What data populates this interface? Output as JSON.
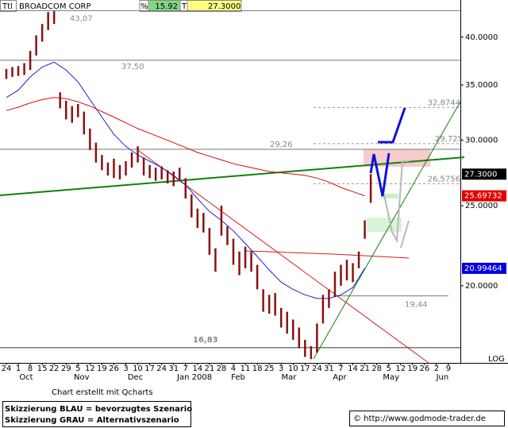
{
  "chart_data": {
    "type": "hilo",
    "symbol": "Ttl",
    "title": "BROADCOM CORP",
    "change_label": "%",
    "change": "15.92",
    "last_label": "T",
    "last": "27.3000",
    "scale_label": "LOG",
    "log_scale": true,
    "xlim": [
      -0.53,
      38.0
    ],
    "ylim": [
      16.2,
      43.2
    ],
    "yticks": [
      {
        "value": 20,
        "label": "20.0000"
      },
      {
        "value": 25,
        "label": "25.0000"
      },
      {
        "value": 30,
        "label": "30.0000"
      },
      {
        "value": 35,
        "label": "35.0000"
      },
      {
        "value": 40,
        "label": "40.0000"
      }
    ],
    "xticks": [
      {
        "value": 0,
        "label": "24"
      },
      {
        "value": 1,
        "label": "1"
      },
      {
        "value": 2,
        "label": "8"
      },
      {
        "value": 3,
        "label": "15"
      },
      {
        "value": 4,
        "label": "22"
      },
      {
        "value": 5,
        "label": "29"
      },
      {
        "value": 6,
        "label": "5"
      },
      {
        "value": 7,
        "label": "12"
      },
      {
        "value": 8,
        "label": "19"
      },
      {
        "value": 9,
        "label": "26"
      },
      {
        "value": 10,
        "label": "3"
      },
      {
        "value": 11,
        "label": "10"
      },
      {
        "value": 12,
        "label": "17"
      },
      {
        "value": 13,
        "label": "24"
      },
      {
        "value": 14,
        "label": "31"
      },
      {
        "value": 15,
        "label": "7"
      },
      {
        "value": 16,
        "label": "14"
      },
      {
        "value": 17,
        "label": "21"
      },
      {
        "value": 18,
        "label": "28"
      },
      {
        "value": 19,
        "label": "4"
      },
      {
        "value": 20,
        "label": "11"
      },
      {
        "value": 21,
        "label": "18"
      },
      {
        "value": 22,
        "label": "25"
      },
      {
        "value": 23,
        "label": "3"
      },
      {
        "value": 24,
        "label": "10"
      },
      {
        "value": 25,
        "label": "17"
      },
      {
        "value": 26,
        "label": "24"
      },
      {
        "value": 27,
        "label": "31"
      },
      {
        "value": 28,
        "label": "7"
      },
      {
        "value": 29,
        "label": "14"
      },
      {
        "value": 30,
        "label": "21"
      },
      {
        "value": 31,
        "label": "28"
      },
      {
        "value": 32,
        "label": "5"
      },
      {
        "value": 33,
        "label": "12"
      },
      {
        "value": 34,
        "label": "19"
      },
      {
        "value": 35,
        "label": "26"
      },
      {
        "value": 36,
        "label": "2"
      },
      {
        "value": 37,
        "label": "9"
      }
    ],
    "month_labels": [
      {
        "value": 1.66,
        "label": "Oct"
      },
      {
        "value": 6.3,
        "label": "Nov"
      },
      {
        "value": 10.8,
        "label": "Dec"
      },
      {
        "value": 15.75,
        "label": "Jan 2008"
      },
      {
        "value": 19.4,
        "label": "Feb"
      },
      {
        "value": 23.65,
        "label": "Mar"
      },
      {
        "value": 27.9,
        "label": "Apr"
      },
      {
        "value": 32.2,
        "label": "May"
      },
      {
        "value": 36.5,
        "label": "Jun"
      }
    ],
    "price": {
      "color": "#8b1010",
      "x": [
        0,
        0.5,
        1,
        1.5,
        2,
        2.5,
        3,
        3.5,
        4,
        4.5,
        5,
        5.5,
        6,
        6.5,
        7,
        7.5,
        8,
        8.5,
        9,
        9.5,
        10,
        10.5,
        11,
        11.5,
        12,
        12.5,
        13,
        13.5,
        14,
        14.5,
        15,
        15.5,
        16,
        16.5,
        17,
        17.5,
        18,
        18.5,
        19,
        19.5,
        20,
        20.5,
        21,
        21.5,
        22,
        22.5,
        23,
        23.5,
        24,
        24.5,
        25,
        25.5,
        26,
        26.5,
        27,
        27.5,
        28,
        28.5,
        29,
        29.5,
        30,
        30.5
      ],
      "high": [
        36.6,
        36.8,
        36.9,
        37.2,
        38.5,
        40.2,
        41.5,
        42.9,
        43.0,
        34.3,
        33.5,
        33.0,
        33.2,
        32.5,
        31.0,
        29.8,
        28.8,
        28.2,
        28.5,
        28.0,
        28.3,
        29.0,
        29.5,
        28.6,
        28.0,
        27.8,
        27.9,
        27.6,
        27.5,
        27.8,
        27.0,
        25.8,
        24.8,
        24.5,
        23.5,
        22.2,
        25.0,
        23.6,
        22.8,
        22.0,
        22.3,
        22.0,
        21.2,
        19.8,
        19.5,
        19.6,
        18.8,
        18.6,
        18.2,
        17.8,
        17.2,
        16.9,
        18.0,
        19.5,
        19.8,
        20.8,
        21.2,
        21.5,
        21.3,
        22.0,
        24.0,
        27.3
      ],
      "low": [
        35.6,
        35.8,
        35.9,
        36.0,
        36.5,
        38.0,
        39.5,
        40.8,
        41.5,
        32.8,
        31.8,
        31.5,
        32.0,
        30.5,
        29.2,
        28.2,
        27.6,
        27.2,
        27.0,
        26.9,
        27.2,
        27.8,
        28.2,
        27.2,
        27.0,
        26.8,
        26.9,
        26.6,
        26.4,
        26.8,
        25.5,
        24.2,
        23.5,
        23.2,
        21.8,
        20.8,
        23.0,
        22.4,
        21.2,
        20.6,
        21.0,
        20.8,
        19.8,
        18.6,
        18.5,
        18.4,
        17.8,
        17.5,
        17.2,
        16.8,
        16.4,
        16.3,
        16.6,
        18.0,
        18.8,
        19.4,
        20.0,
        20.3,
        20.2,
        21.0,
        22.8,
        25.2
      ]
    },
    "moving_averages": [
      {
        "color": "#2020c8",
        "x": [
          0,
          1,
          2,
          3,
          4,
          5,
          6,
          7,
          8,
          9,
          10,
          11,
          12,
          13,
          14,
          15,
          16,
          17,
          18,
          19,
          20,
          21,
          22,
          23,
          24,
          25,
          26,
          27,
          28,
          29,
          30
        ],
        "values": [
          33.8,
          34.5,
          35.8,
          36.8,
          37.3,
          36.5,
          35.3,
          33.6,
          32.0,
          30.5,
          29.5,
          28.8,
          28.3,
          27.8,
          27.2,
          26.5,
          25.5,
          24.6,
          24.0,
          23.3,
          22.5,
          21.7,
          20.9,
          20.2,
          19.8,
          19.5,
          19.3,
          19.3,
          19.5,
          19.9,
          20.99464
        ]
      },
      {
        "color": "#cc1010",
        "x": [
          0,
          1,
          2,
          3,
          4,
          5,
          6,
          7,
          8,
          9,
          10,
          11,
          12,
          13,
          14,
          15,
          16,
          17,
          18,
          19,
          20,
          21,
          22,
          23,
          24,
          25,
          26,
          27,
          28,
          29,
          30
        ],
        "values": [
          32.6,
          32.9,
          33.3,
          33.6,
          33.8,
          33.7,
          33.4,
          33.0,
          32.5,
          32.0,
          31.5,
          31.0,
          30.6,
          30.2,
          29.8,
          29.4,
          29.0,
          28.7,
          28.4,
          28.1,
          27.9,
          27.7,
          27.5,
          27.4,
          27.3,
          27.2,
          27.0,
          26.7,
          26.3,
          26.0,
          25.69732
        ]
      }
    ],
    "levels": [
      {
        "value": 43.07,
        "label": "43,07"
      },
      {
        "value": 37.5,
        "label": "37,50"
      },
      {
        "value": 29.26,
        "label": "29,26"
      },
      {
        "value": 16.83,
        "label": "16,83"
      },
      {
        "value": 19.44,
        "label": "19,44"
      },
      {
        "value": 32.8744,
        "label": "32,8744"
      },
      {
        "value": 29.725,
        "label": "29,725"
      },
      {
        "value": 26.5756,
        "label": "26,5756"
      }
    ],
    "price_labels": [
      {
        "value": 27.3,
        "label": "27.3000",
        "color": "#000000"
      },
      {
        "value": 25.69732,
        "label": "25.69732",
        "color": "#e00000"
      },
      {
        "value": 20.99464,
        "label": "20.99464",
        "color": "#0000e0"
      }
    ]
  },
  "footer": {
    "credit": "Chart erstellt mit Qcharts",
    "legend_blue": "Skizzierung BLAU = bevorzugtes Szenario",
    "legend_grey": "Skizzierung GRAU = Alternativszenario",
    "url": "© http://www.godmode-trader.de"
  }
}
